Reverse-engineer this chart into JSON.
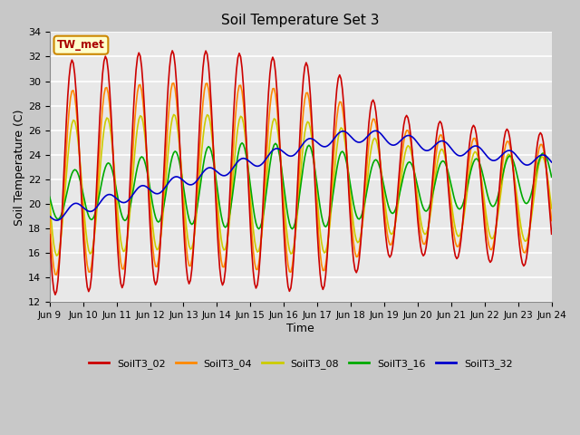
{
  "title": "Soil Temperature Set 3",
  "xlabel": "Time",
  "ylabel": "Soil Temperature (C)",
  "ylim": [
    12,
    34
  ],
  "yticks": [
    12,
    14,
    16,
    18,
    20,
    22,
    24,
    26,
    28,
    30,
    32,
    34
  ],
  "colors": {
    "SoilT3_02": "#cc0000",
    "SoilT3_04": "#ff8800",
    "SoilT3_08": "#cccc00",
    "SoilT3_16": "#00aa00",
    "SoilT3_32": "#0000cc"
  },
  "xtick_labels": [
    "Jun 9",
    "Jun 10",
    "Jun 11",
    "Jun 12",
    "Jun 13",
    "Jun 14",
    "Jun 15",
    "Jun 16",
    "Jun 17",
    "Jun 18",
    "Jun 19",
    "Jun 20",
    "Jun 21",
    "Jun 22",
    "Jun 23",
    "Jun 24"
  ],
  "annotation_text": "TW_met",
  "annotation_color": "#aa0000",
  "annotation_bg": "#ffffcc",
  "annotation_border": "#cc8800",
  "fig_facecolor": "#c8c8c8",
  "plot_facecolor": "#e8e8e8",
  "linewidth": 1.2
}
